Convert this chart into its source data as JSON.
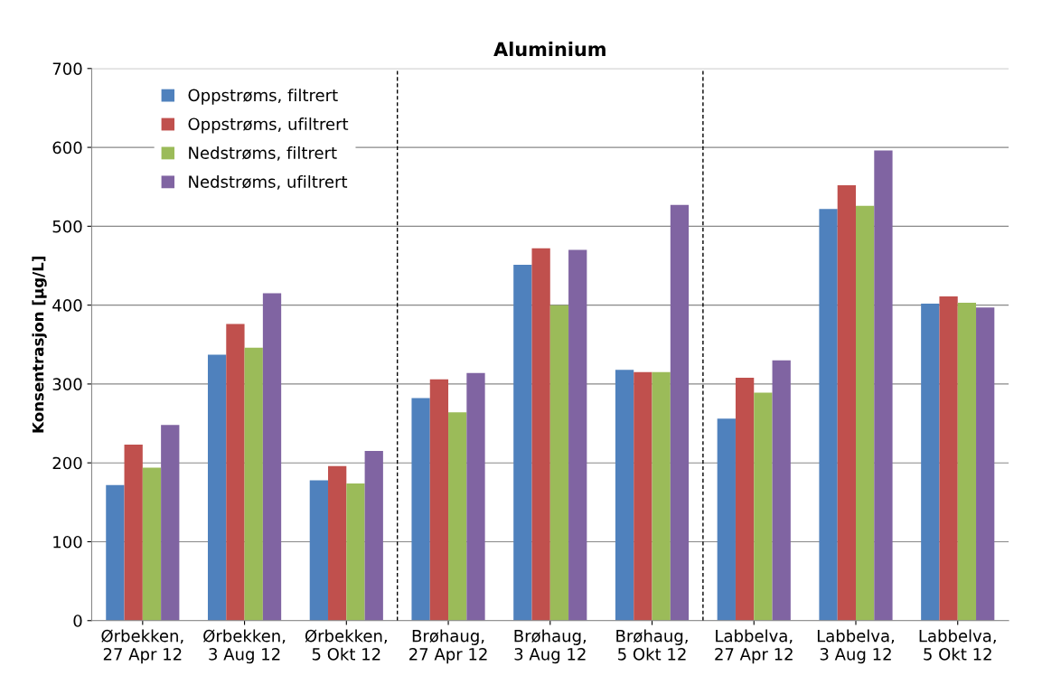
{
  "chart_data": {
    "type": "bar",
    "title": "Aluminium",
    "ylabel": "Konsentrasjon [µg/L]",
    "categories": [
      "Ørbekken,\n27 Apr 12",
      "Ørbekken,\n3 Aug 12",
      "Ørbekken,\n5 Okt 12",
      "Brøhaug,\n27 Apr 12",
      "Brøhaug,\n3 Aug 12",
      "Brøhaug,\n5 Okt 12",
      "Labbelva,\n27 Apr 12",
      "Labbelva,\n3 Aug 12",
      "Labbelva,\n5 Okt 12"
    ],
    "series": [
      {
        "name": "Oppstrøms, filtrert",
        "color": "#4f81bd",
        "values": [
          172,
          337,
          178,
          282,
          451,
          318,
          256,
          522,
          402
        ]
      },
      {
        "name": "Oppstrøms, ufiltrert",
        "color": "#c0504d",
        "values": [
          223,
          376,
          196,
          306,
          472,
          315,
          308,
          552,
          411
        ]
      },
      {
        "name": "Nedstrøms, filtrert",
        "color": "#9bbb59",
        "values": [
          194,
          346,
          174,
          264,
          400,
          315,
          289,
          526,
          403
        ]
      },
      {
        "name": "Nedstrøms, ufiltrert",
        "color": "#8064a2",
        "values": [
          248,
          415,
          215,
          314,
          470,
          527,
          330,
          596,
          397
        ]
      }
    ],
    "ylim": [
      0,
      700
    ],
    "yticks": [
      0,
      100,
      200,
      300,
      400,
      500,
      600,
      700
    ],
    "grid": "y",
    "legend": "top left"
  }
}
